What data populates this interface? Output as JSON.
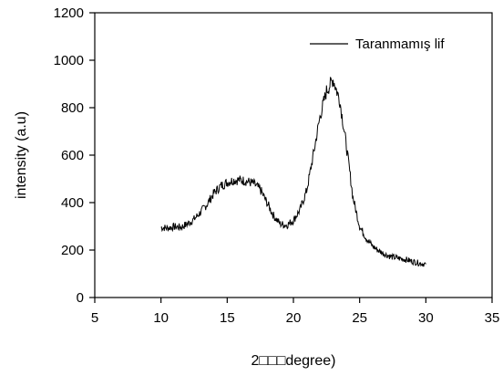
{
  "chart_data": {
    "type": "line",
    "title": "",
    "xlabel": "2□□□degree)",
    "ylabel": "intensity (a.u)",
    "xlim": [
      5,
      35
    ],
    "ylim": [
      0,
      1200
    ],
    "x_ticks": [
      "5",
      "10",
      "15",
      "20",
      "25",
      "30",
      "35"
    ],
    "y_ticks": [
      "0",
      "200",
      "400",
      "600",
      "800",
      "1000",
      "1200"
    ],
    "grid": false,
    "legend_position": "top-right",
    "series": [
      {
        "name": "Taranmamış lif",
        "color": "#000000",
        "x": [
          10,
          10.5,
          11,
          11.5,
          12,
          12.5,
          13,
          13.5,
          14,
          14.5,
          15,
          15.5,
          16,
          16.5,
          17,
          17.5,
          18,
          18.5,
          19,
          19.5,
          20,
          20.5,
          21,
          21.5,
          22,
          22.5,
          23,
          23.5,
          24,
          24.5,
          25,
          25.5,
          26,
          26.5,
          27,
          27.5,
          28,
          28.5,
          29,
          29.5,
          30
        ],
        "y": [
          295,
          293,
          298,
          296,
          310,
          330,
          360,
          395,
          440,
          470,
          485,
          495,
          495,
          490,
          480,
          455,
          400,
          345,
          310,
          305,
          325,
          370,
          450,
          600,
          760,
          870,
          920,
          830,
          640,
          420,
          300,
          250,
          215,
          195,
          180,
          170,
          165,
          160,
          152,
          145,
          140
        ]
      }
    ]
  }
}
